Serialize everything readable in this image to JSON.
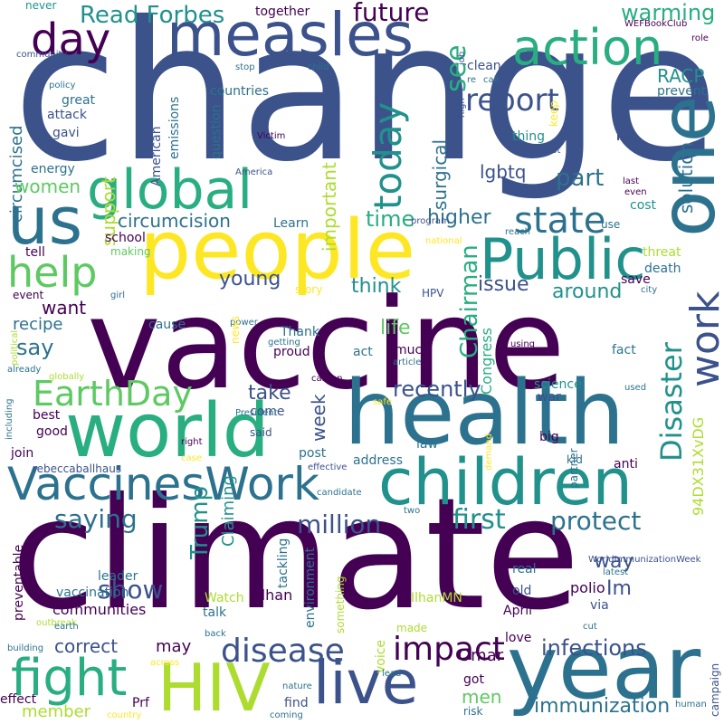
{
  "palette": {
    "dark_purple": "#440154",
    "indigo": "#3b528b",
    "blue_teal": "#2c728e",
    "teal": "#21918c",
    "green": "#28ae80",
    "lime": "#5ec962",
    "light_green": "#addc30",
    "yellow": "#fde725"
  },
  "words": [
    {
      "text": "change",
      "color": "#3b528b"
    },
    {
      "text": "vaccine",
      "color": "#440154"
    },
    {
      "text": "climate",
      "color": "#440154"
    },
    {
      "text": "health",
      "color": "#2c728e"
    },
    {
      "text": "people",
      "color": "#fde725"
    },
    {
      "text": "world",
      "color": "#28ae80"
    },
    {
      "text": "year",
      "color": "#2c728e"
    },
    {
      "text": "children",
      "color": "#21918c"
    },
    {
      "text": "measles",
      "color": "#3b528b"
    },
    {
      "text": "global",
      "color": "#28ae80"
    },
    {
      "text": "us",
      "color": "#2c728e"
    },
    {
      "text": "one",
      "color": "#2c728e"
    },
    {
      "text": "Public",
      "color": "#21918c"
    },
    {
      "text": "VaccinesWork",
      "color": "#2c728e"
    },
    {
      "text": "HIV",
      "color": "#addc30"
    },
    {
      "text": "live",
      "color": "#3b528b"
    },
    {
      "text": "fight",
      "color": "#28ae80"
    },
    {
      "text": "action",
      "color": "#28ae80"
    },
    {
      "text": "day",
      "color": "#440154"
    },
    {
      "text": "help",
      "color": "#5ec962"
    },
    {
      "text": "work",
      "color": "#3b528b"
    },
    {
      "text": "state",
      "color": "#2c728e"
    },
    {
      "text": "today",
      "color": "#21918c"
    },
    {
      "text": "EarthDay",
      "color": "#5ec962"
    },
    {
      "text": "impact",
      "color": "#440154"
    },
    {
      "text": "disease",
      "color": "#3b528b"
    },
    {
      "text": "report",
      "color": "#3b528b"
    },
    {
      "text": "Read Forbes",
      "color": "#21918c"
    },
    {
      "text": "future",
      "color": "#440154"
    },
    {
      "text": "see",
      "color": "#28ae80"
    },
    {
      "text": "warming",
      "color": "#28ae80"
    },
    {
      "text": "Disaster",
      "color": "#21918c"
    },
    {
      "text": "first",
      "color": "#21918c"
    },
    {
      "text": "protect",
      "color": "#2c728e"
    },
    {
      "text": "million",
      "color": "#3b528b"
    },
    {
      "text": "saying",
      "color": "#2c728e"
    },
    {
      "text": "Trump",
      "color": "#21918c"
    },
    {
      "text": "show",
      "color": "#3b528b"
    },
    {
      "text": "infections",
      "color": "#3b528b"
    },
    {
      "text": "immunization",
      "color": "#2c728e"
    },
    {
      "text": "Chairman",
      "color": "#28ae80"
    },
    {
      "text": "part",
      "color": "#2c728e"
    },
    {
      "text": "higher",
      "color": "#2c728e"
    },
    {
      "text": "time",
      "color": "#28ae80"
    },
    {
      "text": "RACP",
      "color": "#21918c"
    },
    {
      "text": "solution",
      "color": "#2c728e"
    },
    {
      "text": "i2",
      "color": "#3b528b"
    },
    {
      "text": "surgical",
      "color": "#2c728e"
    },
    {
      "text": "lgbtq",
      "color": "#3b528b"
    },
    {
      "text": "important",
      "color": "#addc30"
    },
    {
      "text": "support",
      "color": "#addc30"
    },
    {
      "text": "circumcised",
      "color": "#2c728e"
    },
    {
      "text": "circumcision",
      "color": "#2c728e"
    },
    {
      "text": "women",
      "color": "#5ec962"
    },
    {
      "text": "young",
      "color": "#3b528b"
    },
    {
      "text": "think",
      "color": "#21918c"
    },
    {
      "text": "issue",
      "color": "#3b528b"
    },
    {
      "text": "around",
      "color": "#21918c"
    },
    {
      "text": "life",
      "color": "#5ec962"
    },
    {
      "text": "recently",
      "color": "#3b528b"
    },
    {
      "text": "week",
      "color": "#3b528b"
    },
    {
      "text": "take",
      "color": "#3b528b"
    },
    {
      "text": "say",
      "color": "#2c728e"
    },
    {
      "text": "want",
      "color": "#440154"
    },
    {
      "text": "recipe",
      "color": "#2c728e"
    },
    {
      "text": "way",
      "color": "#3b528b"
    },
    {
      "text": "Im",
      "color": "#3b528b"
    },
    {
      "text": "Claiming",
      "color": "#21918c"
    },
    {
      "text": "correct",
      "color": "#3b528b"
    },
    {
      "text": "may",
      "color": "#440154"
    },
    {
      "text": "men",
      "color": "#5ec962"
    },
    {
      "text": "member",
      "color": "#addc30"
    },
    {
      "text": "94DX31XvDG",
      "color": "#addc30"
    },
    {
      "text": "Congress",
      "color": "#28ae80"
    },
    {
      "text": "Omar",
      "color": "#440154"
    },
    {
      "text": "Ilhan",
      "color": "#440154"
    },
    {
      "text": "IlhanMN",
      "color": "#addc30"
    },
    {
      "text": "polio",
      "color": "#440154"
    },
    {
      "text": "communities",
      "color": "#440154"
    },
    {
      "text": "vaccination",
      "color": "#2c728e"
    },
    {
      "text": "leader",
      "color": "#2c728e"
    },
    {
      "text": "countries",
      "color": "#2c728e"
    },
    {
      "text": "energy",
      "color": "#2c728e"
    },
    {
      "text": "attack",
      "color": "#3b528b"
    },
    {
      "text": "gavi",
      "color": "#3b528b"
    },
    {
      "text": "great",
      "color": "#2c728e"
    },
    {
      "text": "policy",
      "color": "#2c728e"
    },
    {
      "text": "American",
      "color": "#3b528b"
    },
    {
      "text": "emissions",
      "color": "#2c728e"
    },
    {
      "text": "question",
      "color": "#2c728e"
    },
    {
      "text": "America",
      "color": "#3b528b"
    },
    {
      "text": "Victim",
      "color": "#440154"
    },
    {
      "text": "together",
      "color": "#440154"
    },
    {
      "text": "never",
      "color": "#21918c"
    },
    {
      "text": "community",
      "color": "#3b528b"
    },
    {
      "text": "stop",
      "color": "#2c728e"
    },
    {
      "text": "child",
      "color": "#2c728e"
    },
    {
      "text": "job",
      "color": "#3b528b"
    },
    {
      "text": "clean",
      "color": "#3b528b"
    },
    {
      "text": "re",
      "color": "#2c728e"
    },
    {
      "text": "call",
      "color": "#2c728e"
    },
    {
      "text": "WEFBookClub",
      "color": "#440154"
    },
    {
      "text": "role",
      "color": "#440154"
    },
    {
      "text": "prevent",
      "color": "#2c728e"
    },
    {
      "text": "keep",
      "color": "#fde725"
    },
    {
      "text": "high",
      "color": "#3b528b"
    },
    {
      "text": "thing",
      "color": "#21918c"
    },
    {
      "text": "lgbt",
      "color": "#3b528b"
    },
    {
      "text": "last",
      "color": "#440154"
    },
    {
      "text": "even",
      "color": "#440154"
    },
    {
      "text": "use",
      "color": "#2c728e"
    },
    {
      "text": "cost",
      "color": "#21918c"
    },
    {
      "text": "program",
      "color": "#3b528b"
    },
    {
      "text": "national",
      "color": "#fde725"
    },
    {
      "text": "reach",
      "color": "#2c728e"
    },
    {
      "text": "threat",
      "color": "#addc30"
    },
    {
      "text": "save",
      "color": "#440154"
    },
    {
      "text": "death",
      "color": "#2c728e"
    },
    {
      "text": "city",
      "color": "#2c728e"
    },
    {
      "text": "school",
      "color": "#440154"
    },
    {
      "text": "making",
      "color": "#5ec962"
    },
    {
      "text": "tell",
      "color": "#440154"
    },
    {
      "text": "Learn",
      "color": "#2c728e"
    },
    {
      "text": "girl",
      "color": "#2c728e"
    },
    {
      "text": "power",
      "color": "#2c728e"
    },
    {
      "text": "story",
      "color": "#fde725"
    },
    {
      "text": "event",
      "color": "#440154"
    },
    {
      "text": "HPV",
      "color": "#3b528b"
    },
    {
      "text": "cause",
      "color": "#2c728e"
    },
    {
      "text": "news",
      "color": "#fde725"
    },
    {
      "text": "Thank",
      "color": "#2c728e"
    },
    {
      "text": "getting",
      "color": "#2c728e"
    },
    {
      "text": "proud",
      "color": "#440154"
    },
    {
      "text": "act",
      "color": "#2c728e"
    },
    {
      "text": "much",
      "color": "#440154"
    },
    {
      "text": "political",
      "color": "#addc30"
    },
    {
      "text": "using",
      "color": "#440154"
    },
    {
      "text": "fact",
      "color": "#2c728e"
    },
    {
      "text": "already",
      "color": "#2c728e"
    },
    {
      "text": "globally",
      "color": "#addc30"
    },
    {
      "text": "carbon",
      "color": "#440154"
    },
    {
      "text": "article",
      "color": "#2c728e"
    },
    {
      "text": "science",
      "color": "#21918c"
    },
    {
      "text": "war",
      "color": "#3b528b"
    },
    {
      "text": "used",
      "color": "#2c728e"
    },
    {
      "text": "including",
      "color": "#2c728e"
    },
    {
      "text": "best",
      "color": "#440154"
    },
    {
      "text": "good",
      "color": "#440154"
    },
    {
      "text": "come",
      "color": "#3b528b"
    },
    {
      "text": "said",
      "color": "#3b528b"
    },
    {
      "text": "safe",
      "color": "#fde725"
    },
    {
      "text": "President",
      "color": "#2c728e"
    },
    {
      "text": "big",
      "color": "#440154"
    },
    {
      "text": "join",
      "color": "#440154"
    },
    {
      "text": "right",
      "color": "#440154"
    },
    {
      "text": "post",
      "color": "#2c728e"
    },
    {
      "text": "address",
      "color": "#2c728e"
    },
    {
      "text": "partner",
      "color": "#2c728e"
    },
    {
      "text": "kid",
      "color": "#2c728e"
    },
    {
      "text": "law",
      "color": "#2c728e"
    },
    {
      "text": "rebeccaballhaus",
      "color": "#3b528b"
    },
    {
      "text": "case",
      "color": "#fde725"
    },
    {
      "text": "effective",
      "color": "#3b528b"
    },
    {
      "text": "demand",
      "color": "#fde725"
    },
    {
      "text": "anti",
      "color": "#440154"
    },
    {
      "text": "candidate",
      "color": "#2c728e"
    },
    {
      "text": "two",
      "color": "#2c728e"
    },
    {
      "text": "WorldImmunizationWeek",
      "color": "#3b528b"
    },
    {
      "text": "latest",
      "color": "#2c728e"
    },
    {
      "text": "preventable",
      "color": "#440154"
    },
    {
      "text": "outbreak",
      "color": "#addc30"
    },
    {
      "text": "earth",
      "color": "#2c728e"
    },
    {
      "text": "back",
      "color": "#2c728e"
    },
    {
      "text": "tackling",
      "color": "#2c728e"
    },
    {
      "text": "environment",
      "color": "#2c728e"
    },
    {
      "text": "something",
      "color": "#addc30"
    },
    {
      "text": "real",
      "color": "#2c728e"
    },
    {
      "text": "old",
      "color": "#3b528b"
    },
    {
      "text": "via",
      "color": "#3b528b"
    },
    {
      "text": "April",
      "color": "#440154"
    },
    {
      "text": "cut",
      "color": "#2c728e"
    },
    {
      "text": "Watch",
      "color": "#addc30"
    },
    {
      "text": "talk",
      "color": "#2c728e"
    },
    {
      "text": "voice",
      "color": "#addc30"
    },
    {
      "text": "made",
      "color": "#addc30"
    },
    {
      "text": "love",
      "color": "#440154"
    },
    {
      "text": "building",
      "color": "#2c728e"
    },
    {
      "text": "across",
      "color": "#fde725"
    },
    {
      "text": "lead",
      "color": "#2c728e"
    },
    {
      "text": "got",
      "color": "#440154"
    },
    {
      "text": "risk",
      "color": "#2c728e"
    },
    {
      "text": "human",
      "color": "#2c728e"
    },
    {
      "text": "campaign",
      "color": "#3b528b"
    },
    {
      "text": "effect",
      "color": "#440154"
    },
    {
      "text": "Prf",
      "color": "#440154"
    },
    {
      "text": "nature",
      "color": "#2c728e"
    },
    {
      "text": "coming",
      "color": "#2c728e"
    },
    {
      "text": "country",
      "color": "#fde725"
    },
    {
      "text": "find",
      "color": "#3b528b"
    }
  ]
}
